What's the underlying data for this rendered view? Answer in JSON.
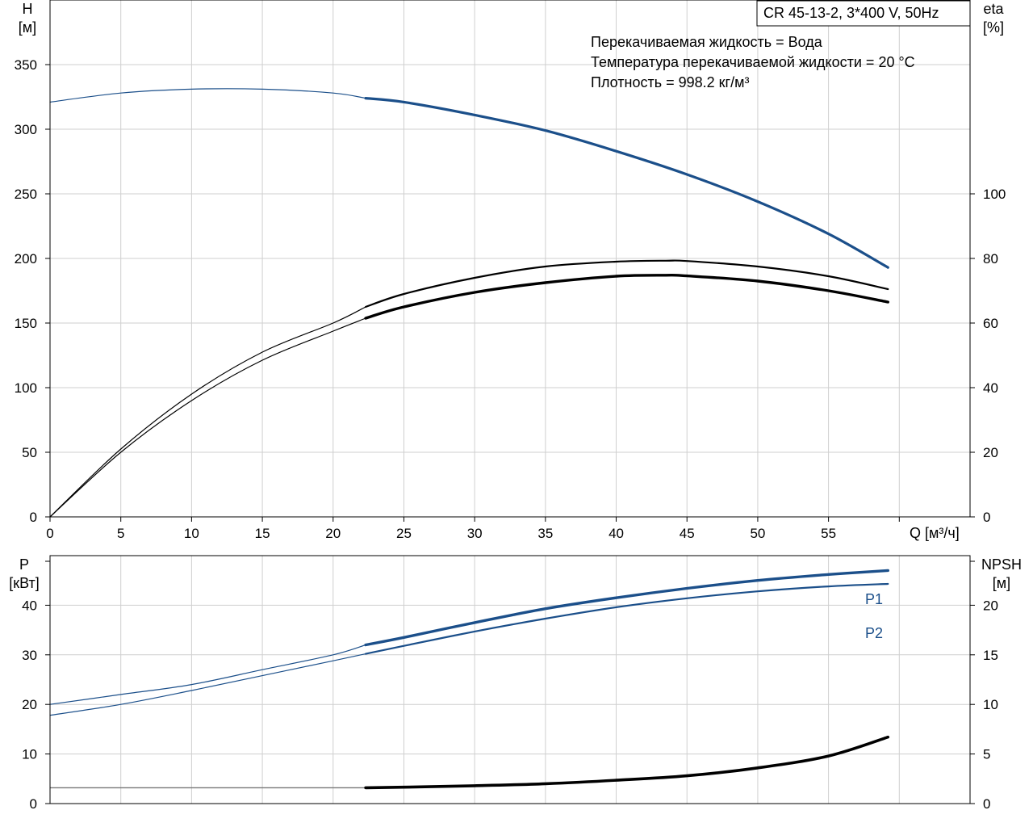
{
  "chart_data": [
    {
      "type": "line",
      "title": "CR 45-13-2, 3*400 V, 50Hz",
      "annotations": [
        "Перекачиваемая жидкость = Вода",
        "Температура перекачиваемой жидкости = 20 °C",
        "Плотность = 998.2 кг/м³"
      ],
      "xlabel": "Q [м³/ч]",
      "xlim": [
        0,
        65
      ],
      "xticks": [
        0,
        5,
        10,
        15,
        20,
        25,
        30,
        35,
        40,
        45,
        50,
        55
      ],
      "ylabel_left": [
        "H",
        "[м]"
      ],
      "ylim_left": [
        0,
        400
      ],
      "yticks_left": [
        0,
        50,
        100,
        150,
        200,
        250,
        300,
        350
      ],
      "ylabel_right": [
        "eta",
        "[%]"
      ],
      "ylim_right": [
        0,
        160
      ],
      "yticks_right": [
        0,
        20,
        40,
        60,
        80,
        100
      ],
      "grid": true,
      "series": [
        {
          "axis": "left",
          "color": "#1b4f8a",
          "x": [
            0,
            5,
            10,
            15,
            20,
            22.3,
            25,
            30,
            35,
            40,
            45,
            50,
            55,
            59.2
          ],
          "y": [
            321,
            328,
            331,
            331,
            328,
            324,
            321,
            311,
            299,
            283,
            265,
            244,
            219,
            193
          ]
        },
        {
          "axis": "right",
          "color": "#000000",
          "x": [
            0,
            5,
            10,
            15,
            20,
            22.3,
            25,
            30,
            35,
            40,
            43.5,
            45,
            50,
            55,
            59.2
          ],
          "y": [
            0,
            21,
            38,
            51,
            60,
            65,
            69,
            74,
            77.5,
            79,
            79.3,
            79.2,
            77.5,
            74.5,
            70.5
          ]
        },
        {
          "axis": "right",
          "color": "#000000",
          "x": [
            0,
            5,
            10,
            15,
            20,
            22.3,
            25,
            30,
            35,
            40,
            43.5,
            45,
            50,
            55,
            59.2
          ],
          "y": [
            0,
            20,
            36,
            48.5,
            57.5,
            61.5,
            65,
            69.5,
            72.5,
            74.5,
            74.8,
            74.6,
            73,
            70,
            66.5
          ]
        }
      ]
    },
    {
      "type": "line",
      "xlim": [
        0,
        65
      ],
      "ylabel_left": [
        "P",
        "[кВт]"
      ],
      "ylim_left": [
        0,
        50
      ],
      "yticks_left": [
        0,
        10,
        20,
        30,
        40
      ],
      "ylabel_right": [
        "NPSH",
        "[м]"
      ],
      "ylim_right": [
        0,
        25
      ],
      "yticks_right": [
        0,
        5,
        10,
        15,
        20
      ],
      "grid": true,
      "series": [
        {
          "name": "P1",
          "axis": "left",
          "color": "#1b4f8a",
          "x": [
            0,
            5,
            10,
            15,
            20,
            22.3,
            25,
            30,
            35,
            40,
            45,
            50,
            55,
            59.2
          ],
          "y": [
            20,
            22,
            24,
            27,
            30,
            32,
            33.5,
            36.5,
            39.3,
            41.5,
            43.4,
            45,
            46.2,
            47
          ]
        },
        {
          "name": "P2",
          "axis": "left",
          "color": "#1b4f8a",
          "x": [
            0,
            5,
            10,
            15,
            20,
            22.3,
            25,
            30,
            35,
            40,
            45,
            50,
            55,
            59.2
          ],
          "y": [
            17.8,
            20,
            22.8,
            25.8,
            28.8,
            30.2,
            31.8,
            34.7,
            37.3,
            39.6,
            41.4,
            42.8,
            43.8,
            44.3
          ]
        },
        {
          "axis": "right",
          "color": "#000000",
          "x": [
            0,
            5,
            10,
            15,
            20,
            22.3,
            25,
            30,
            35,
            40,
            45,
            50,
            55,
            59.2
          ],
          "y": [
            1.6,
            1.6,
            1.6,
            1.6,
            1.6,
            1.6,
            1.65,
            1.8,
            2.0,
            2.35,
            2.8,
            3.6,
            4.8,
            6.7
          ]
        }
      ]
    }
  ]
}
